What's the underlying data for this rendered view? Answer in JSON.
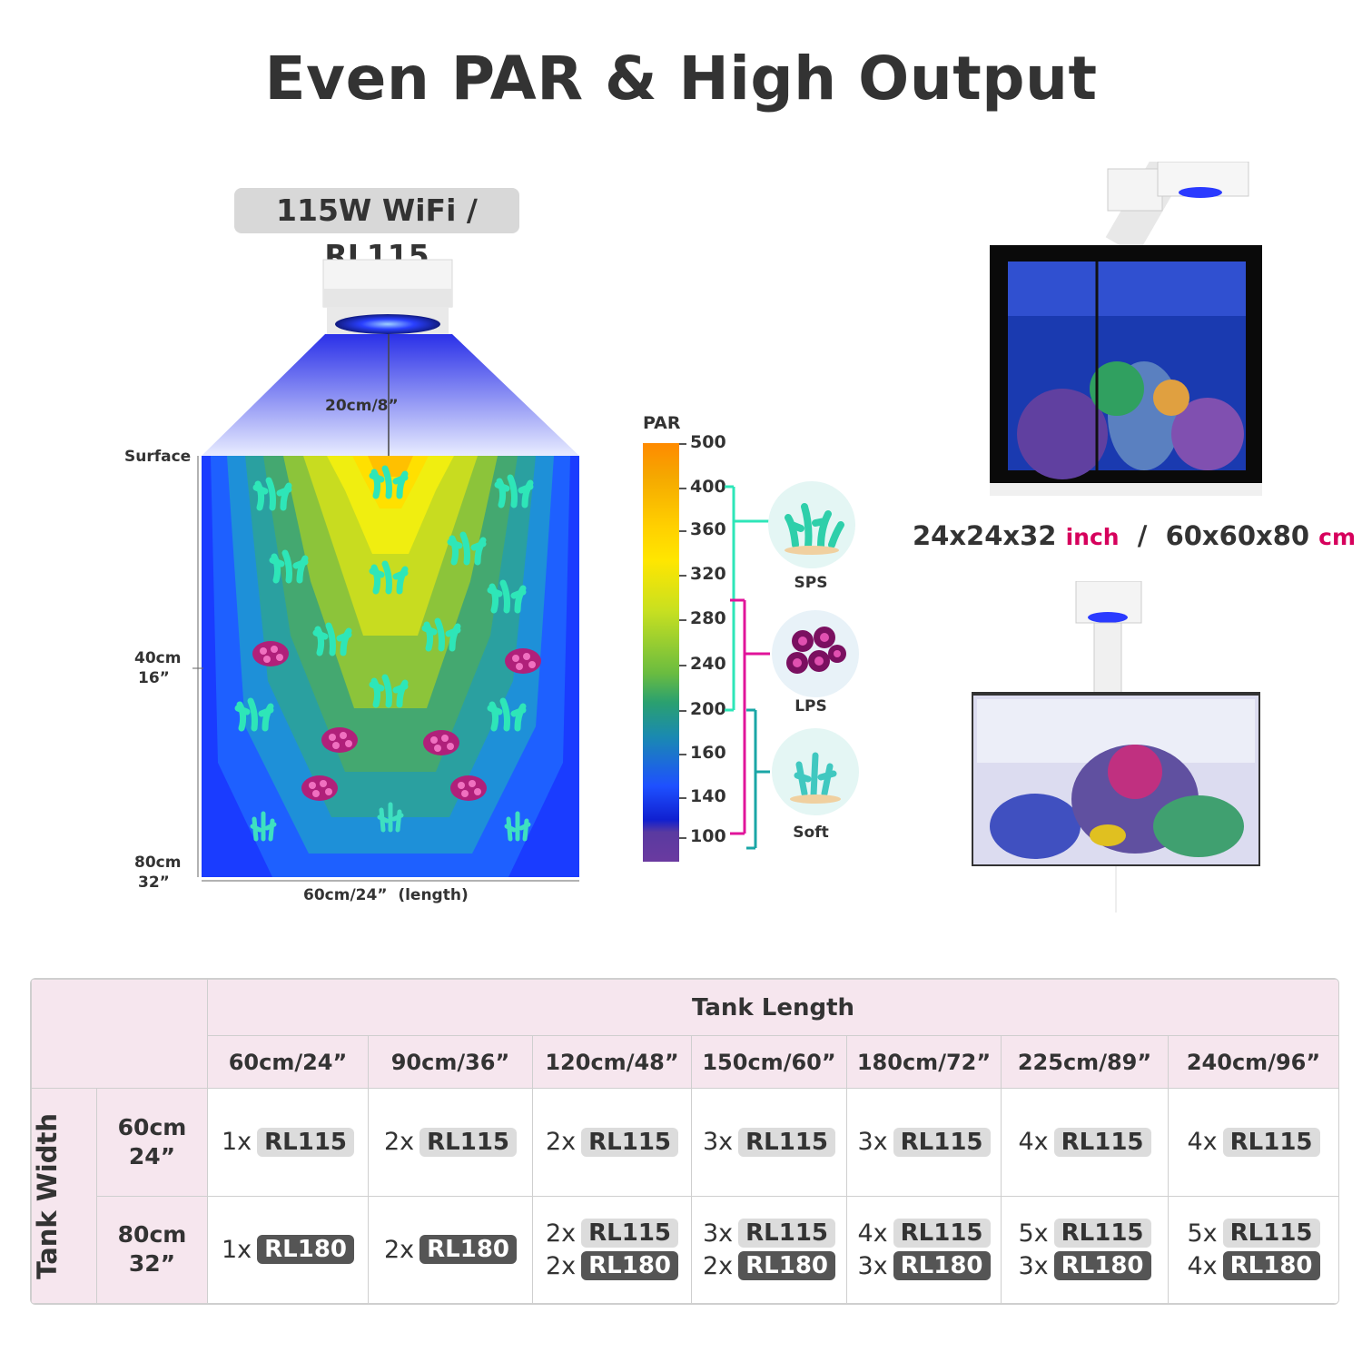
{
  "title": "Even PAR & High Output",
  "model_badge": "115W WiFi / RL115",
  "diagram": {
    "mount_height": "20cm/8”",
    "surface": "Surface",
    "depth_mid_cm": "40cm",
    "depth_mid_in": "16”",
    "depth_bottom_cm": "80cm",
    "depth_bottom_in": "32”",
    "length": "60cm/24”  (length)"
  },
  "par_scale": {
    "title": "PAR",
    "ticks": [
      "500",
      "400",
      "360",
      "320",
      "280",
      "240",
      "200",
      "160",
      "140",
      "100"
    ],
    "colors": {
      "high": "#ff8a00",
      "mid": "#ffe600",
      "low_mid": "#3aa86a",
      "low": "#1e50ff",
      "floor": "#6a3aa0"
    }
  },
  "coral_types": [
    {
      "label": "SPS",
      "color": "#2ee6b8",
      "icon": "sps-coral-icon"
    },
    {
      "label": "LPS",
      "color": "#e0149a",
      "icon": "lps-coral-icon"
    },
    {
      "label": "Soft",
      "color": "#1aa6a6",
      "icon": "soft-coral-icon"
    }
  ],
  "tank_dims": {
    "in_value": "24x24x32",
    "in_unit": "inch",
    "sep": "/",
    "cm_value": "60x60x80",
    "cm_unit": "cm"
  },
  "table": {
    "header": "Tank Length",
    "row_group": "Tank Width",
    "columns": [
      "60cm/24”",
      "90cm/36”",
      "120cm/48”",
      "150cm/60”",
      "180cm/72”",
      "225cm/89”",
      "240cm/96”"
    ],
    "rows": [
      {
        "cm": "60cm",
        "in": "24”",
        "cells": [
          [
            {
              "qty": "1x",
              "model": "RL115"
            }
          ],
          [
            {
              "qty": "2x",
              "model": "RL115"
            }
          ],
          [
            {
              "qty": "2x",
              "model": "RL115"
            }
          ],
          [
            {
              "qty": "3x",
              "model": "RL115"
            }
          ],
          [
            {
              "qty": "3x",
              "model": "RL115"
            }
          ],
          [
            {
              "qty": "4x",
              "model": "RL115"
            }
          ],
          [
            {
              "qty": "4x",
              "model": "RL115"
            }
          ]
        ]
      },
      {
        "cm": "80cm",
        "in": "32”",
        "cells": [
          [
            {
              "qty": "1x",
              "model": "RL180"
            }
          ],
          [
            {
              "qty": "2x",
              "model": "RL180"
            }
          ],
          [
            {
              "qty": "2x",
              "model": "RL115"
            },
            {
              "qty": "2x",
              "model": "RL180"
            }
          ],
          [
            {
              "qty": "3x",
              "model": "RL115"
            },
            {
              "qty": "2x",
              "model": "RL180"
            }
          ],
          [
            {
              "qty": "4x",
              "model": "RL115"
            },
            {
              "qty": "3x",
              "model": "RL180"
            }
          ],
          [
            {
              "qty": "5x",
              "model": "RL115"
            },
            {
              "qty": "3x",
              "model": "RL180"
            }
          ],
          [
            {
              "qty": "5x",
              "model": "RL115"
            },
            {
              "qty": "4x",
              "model": "RL180"
            }
          ]
        ]
      }
    ]
  }
}
